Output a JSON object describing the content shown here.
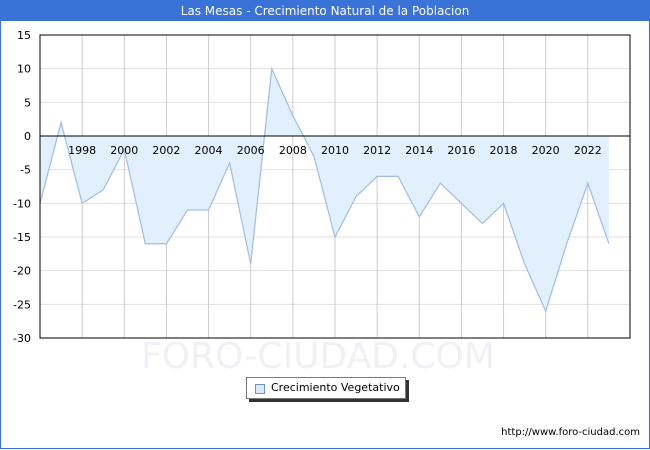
{
  "title": "Las Mesas - Crecimiento Natural de la Poblacion",
  "watermark": "FORO-CIUDAD.COM",
  "footer_url": "http://www.foro-ciudad.com",
  "legend": {
    "label": "Crecimiento Vegetativo"
  },
  "colors": {
    "title_bar": "#3a73d8",
    "line": "#9dbde8",
    "fill": "#e2effc",
    "grid": "#d0d0d0"
  },
  "chart_data": {
    "type": "area",
    "title": "Las Mesas - Crecimiento Natural de la Poblacion",
    "xlabel": "",
    "ylabel": "",
    "x": [
      1996,
      1997,
      1998,
      1999,
      2000,
      2001,
      2002,
      2003,
      2004,
      2005,
      2006,
      2007,
      2008,
      2009,
      2010,
      2011,
      2012,
      2013,
      2014,
      2015,
      2016,
      2017,
      2018,
      2019,
      2020,
      2021,
      2022,
      2023
    ],
    "series": [
      {
        "name": "Crecimiento Vegetativo",
        "values": [
          -10,
          2,
          -10,
          -8,
          -2,
          -16,
          -16,
          -11,
          -11,
          -4,
          -19,
          10,
          3,
          -3,
          -15,
          -9,
          -6,
          -6,
          -12,
          -7,
          -10,
          -13,
          -10,
          -19,
          -26,
          -16,
          -7,
          -16
        ]
      }
    ],
    "x_tick_labels": [
      "1998",
      "2000",
      "2002",
      "2004",
      "2006",
      "2008",
      "2010",
      "2012",
      "2014",
      "2016",
      "2018",
      "2020",
      "2022"
    ],
    "y_tick_labels": [
      "15",
      "10",
      "5",
      "0",
      "-5",
      "-10",
      "-15",
      "-20",
      "-25",
      "-30"
    ],
    "ylim": [
      -30,
      15
    ],
    "grid": true,
    "legend_position": "bottom"
  }
}
